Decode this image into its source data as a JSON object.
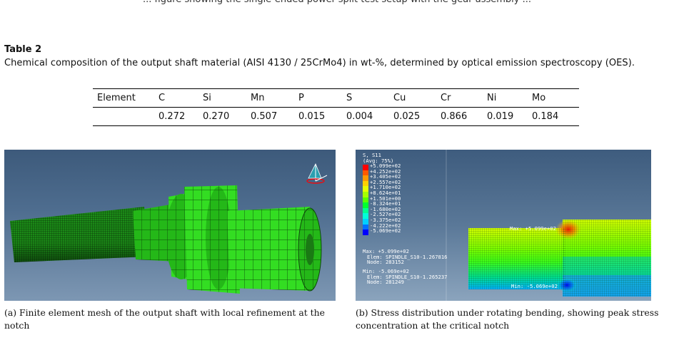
{
  "cut_off_line": "... figure showing the single-ended power-split test setup with the gear assembly ...",
  "table": {
    "label": "Table 2",
    "caption": "Chemical composition of the output shaft material (AISI 4130 / 25CrMo4) in wt-%, determined by optical emission spectroscopy (OES).",
    "header": [
      "Element",
      "C",
      "Si",
      "Mn",
      "P",
      "S",
      "Cu",
      "Cr",
      "Ni",
      "Mo"
    ],
    "row": [
      "",
      "0.272",
      "0.270",
      "0.507",
      "0.015",
      "0.004",
      "0.025",
      "0.866",
      "0.019",
      "0.184"
    ]
  },
  "figure_a": {
    "caption": "(a) Finite element mesh of the output shaft with local refinement at the notch",
    "mesh_color": "#33dd22"
  },
  "figure_b": {
    "legend_lines": [
      "S, S11",
      "(Avg: 75%)",
      "+5.099e+02",
      "+4.252e+02",
      "+3.405e+02",
      "+2.557e+02",
      "+1.710e+02",
      "+8.624e+01",
      "+1.501e+00",
      "-8.324e+01",
      "-1.680e+02",
      "-2.527e+02",
      "-3.375e+02",
      "-4.222e+02",
      "-5.069e+02"
    ],
    "legend_colors": [
      "#ff0000",
      "#ff5a00",
      "#ff9900",
      "#ffd000",
      "#e6ff00",
      "#a6ff00",
      "#5aff00",
      "#00ff30",
      "#00ff90",
      "#00ffd8",
      "#00d0ff",
      "#0070ff",
      "#0000ff"
    ],
    "max_info": [
      "Max: +5.099e+02",
      "Elem: SPINDLE_S10-1.267816",
      "Node: 283152"
    ],
    "min_info": [
      "Min: -5.069e+02",
      "Elem: SPINDLE_S10-1.265237",
      "Node: 281249"
    ],
    "max_label": "Max: +5.099e+02",
    "min_label": "Min: -5.069e+02",
    "caption": "(b) Stress distribution under rotating bending, showing peak stress concentration at the critical notch"
  }
}
